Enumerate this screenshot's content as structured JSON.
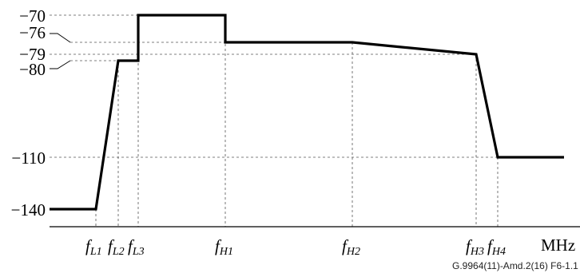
{
  "chart_data": {
    "type": "line",
    "y_ticks": [
      {
        "label": "-70",
        "value": -70
      },
      {
        "label": "-76",
        "value": -76
      },
      {
        "label": "-79",
        "value": -79
      },
      {
        "label": "-80",
        "value": -80
      },
      {
        "label": "-110",
        "value": -110
      },
      {
        "label": "-140",
        "value": -140
      }
    ],
    "x_ticks": [
      {
        "base": "f",
        "sub": "L1",
        "ref": "L1"
      },
      {
        "base": "f",
        "sub": "L2",
        "ref": "L2"
      },
      {
        "base": "f",
        "sub": "L3",
        "ref": "L3"
      },
      {
        "base": "f",
        "sub": "H1",
        "ref": "H1"
      },
      {
        "base": "f",
        "sub": "H2",
        "ref": "H2"
      },
      {
        "base": "f",
        "sub": "H3",
        "ref": "H3"
      },
      {
        "base": "f",
        "sub": "H4",
        "ref": "H4"
      }
    ],
    "x_unit": "MHz",
    "caption": "G.9964(11)-Amd.2(16)  F6-1.1",
    "series": [
      {
        "points": [
          {
            "x": "start",
            "y": -140
          },
          {
            "x": "L1",
            "y": -140
          },
          {
            "x": "L2",
            "y": -80
          },
          {
            "x": "L3",
            "y": -80
          },
          {
            "x": "L3",
            "y": -70
          },
          {
            "x": "H1",
            "y": -70
          },
          {
            "x": "H1",
            "y": -76
          },
          {
            "x": "H2",
            "y": -76
          },
          {
            "x": "H3",
            "y": -79
          },
          {
            "x": "H4",
            "y": -110
          },
          {
            "x": "end",
            "y": -110
          }
        ]
      }
    ]
  }
}
